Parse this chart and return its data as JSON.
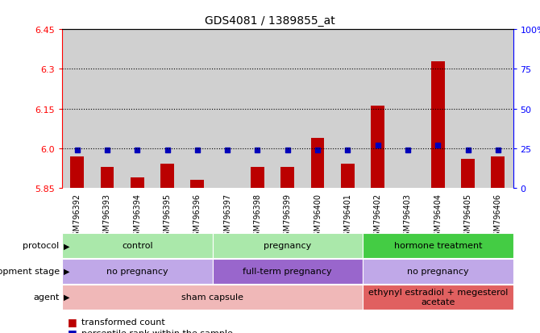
{
  "title": "GDS4081 / 1389855_at",
  "samples": [
    "GSM796392",
    "GSM796393",
    "GSM796394",
    "GSM796395",
    "GSM796396",
    "GSM796397",
    "GSM796398",
    "GSM796399",
    "GSM796400",
    "GSM796401",
    "GSM796402",
    "GSM796403",
    "GSM796404",
    "GSM796405",
    "GSM796406"
  ],
  "transformed_count": [
    5.97,
    5.93,
    5.89,
    5.94,
    5.88,
    5.84,
    5.93,
    5.93,
    6.04,
    5.94,
    6.16,
    5.85,
    6.33,
    5.96,
    5.97
  ],
  "percentile_rank": [
    24,
    24,
    24,
    24,
    24,
    24,
    24,
    24,
    24,
    24,
    27,
    24,
    27,
    24,
    24
  ],
  "ymin": 5.85,
  "ymax": 6.45,
  "yticks_left": [
    5.85,
    6.0,
    6.15,
    6.3,
    6.45
  ],
  "yticks_right": [
    0,
    25,
    50,
    75,
    100
  ],
  "grid_lines": [
    6.0,
    6.15,
    6.3
  ],
  "bar_color": "#bb0000",
  "percentile_color": "#0000bb",
  "col_bg_even": "#d0d0d0",
  "col_bg_odd": "#c0c0c0",
  "plot_bg_color": "#ffffff",
  "fig_bg_color": "#ffffff",
  "protocol_data": [
    {
      "label": "control",
      "start": 0,
      "end": 5,
      "color": "#aae8aa"
    },
    {
      "label": "pregnancy",
      "start": 5,
      "end": 10,
      "color": "#aae8aa"
    },
    {
      "label": "hormone treatment",
      "start": 10,
      "end": 15,
      "color": "#44cc44"
    }
  ],
  "dev_stage_data": [
    {
      "label": "no pregnancy",
      "start": 0,
      "end": 5,
      "color": "#c0a8e8"
    },
    {
      "label": "full-term pregnancy",
      "start": 5,
      "end": 10,
      "color": "#9966cc"
    },
    {
      "label": "no pregnancy",
      "start": 10,
      "end": 15,
      "color": "#c0a8e8"
    }
  ],
  "agent_data": [
    {
      "label": "sham capsule",
      "start": 0,
      "end": 10,
      "color": "#f0b8b8"
    },
    {
      "label": "ethynyl estradiol + megesterol\nacetate",
      "start": 10,
      "end": 15,
      "color": "#e06060"
    }
  ],
  "row_labels": [
    "protocol",
    "development stage",
    "agent"
  ],
  "legend": [
    {
      "color": "#bb0000",
      "label": "transformed count"
    },
    {
      "color": "#0000bb",
      "label": "percentile rank within the sample"
    }
  ]
}
